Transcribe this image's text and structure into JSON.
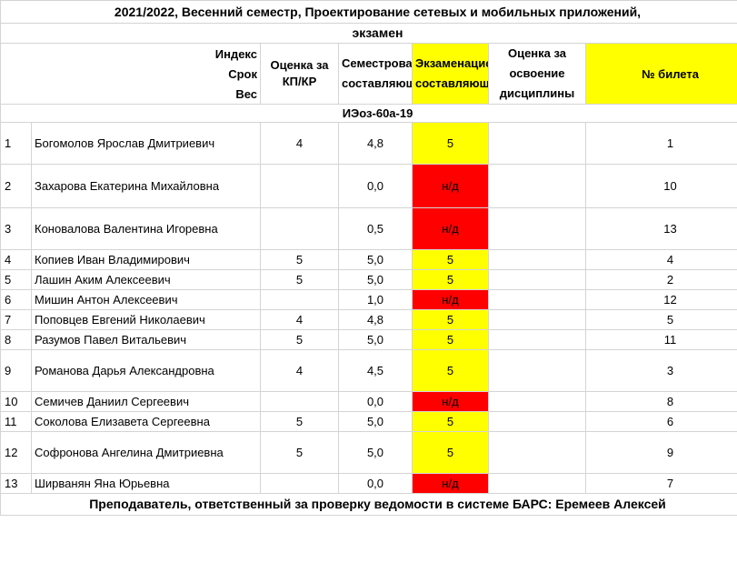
{
  "title_line1": "2021/2022, Весенний семестр, Проектирование сетевых и мобильных приложений,",
  "title_line2": "экзамен",
  "header": {
    "index_label": "Индекс",
    "term_label": "Срок",
    "weight_label": "Вес",
    "col_kp": "Оценка за КП/КР",
    "col_semester": "Семестровая составляющая",
    "col_exam": "Экзаменационная составляющая",
    "col_grade": "Оценка за освоение дисциплины",
    "col_ticket": "№ билета"
  },
  "group": "ИЭоз-60а-19",
  "rows": [
    {
      "n": "1",
      "name": "Богомолов Ярослав Дмитриевич",
      "kp": "4",
      "sem": "4,8",
      "exam": "5",
      "grade": "",
      "ticket": "1"
    },
    {
      "n": "2",
      "name": "Захарова Екатерина Михайловна",
      "kp": "",
      "sem": "0,0",
      "exam": "н/д",
      "grade": "",
      "ticket": "10"
    },
    {
      "n": "3",
      "name": "Коновалова Валентина Игоревна",
      "kp": "",
      "sem": "0,5",
      "exam": "н/д",
      "grade": "",
      "ticket": "13"
    },
    {
      "n": "4",
      "name": "Копиев Иван Владимирович",
      "kp": "5",
      "sem": "5,0",
      "exam": "5",
      "grade": "",
      "ticket": "4"
    },
    {
      "n": "5",
      "name": "Лашин Аким Алексеевич",
      "kp": "5",
      "sem": "5,0",
      "exam": "5",
      "grade": "",
      "ticket": "2"
    },
    {
      "n": "6",
      "name": "Мишин Антон Алексеевич",
      "kp": "",
      "sem": "1,0",
      "exam": "н/д",
      "grade": "",
      "ticket": "12"
    },
    {
      "n": "7",
      "name": "Поповцев Евгений Николаевич",
      "kp": "4",
      "sem": "4,8",
      "exam": "5",
      "grade": "",
      "ticket": "5"
    },
    {
      "n": "8",
      "name": "Разумов Павел Витальевич",
      "kp": "5",
      "sem": "5,0",
      "exam": "5",
      "grade": "",
      "ticket": "11"
    },
    {
      "n": "9",
      "name": "Романова Дарья Александровна",
      "kp": "4",
      "sem": "4,5",
      "exam": "5",
      "grade": "",
      "ticket": "3"
    },
    {
      "n": "10",
      "name": "Семичев Даниил Сергеевич",
      "kp": "",
      "sem": "0,0",
      "exam": "н/д",
      "grade": "",
      "ticket": "8"
    },
    {
      "n": "11",
      "name": "Соколова Елизавета Сергеевна",
      "kp": "5",
      "sem": "5,0",
      "exam": "5",
      "grade": "",
      "ticket": "6"
    },
    {
      "n": "12",
      "name": "Софронова Ангелина Дмитриевна",
      "kp": "5",
      "sem": "5,0",
      "exam": "5",
      "grade": "",
      "ticket": "9"
    },
    {
      "n": "13",
      "name": "Ширванян Яна Юрьевна",
      "kp": "",
      "sem": "0,0",
      "exam": "н/д",
      "grade": "",
      "ticket": "7"
    }
  ],
  "footer": "Преподаватель, ответственный за проверку ведомости в системе БАРС: Еремеев Алексей",
  "colors": {
    "ok": "#ffff00",
    "missing": "#ff0000"
  }
}
